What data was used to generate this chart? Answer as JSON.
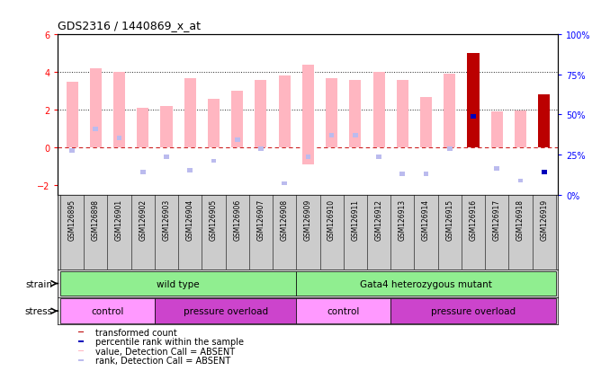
{
  "title": "GDS2316 / 1440869_x_at",
  "samples": [
    "GSM126895",
    "GSM126898",
    "GSM126901",
    "GSM126902",
    "GSM126903",
    "GSM126904",
    "GSM126905",
    "GSM126906",
    "GSM126907",
    "GSM126908",
    "GSM126909",
    "GSM126910",
    "GSM126911",
    "GSM126912",
    "GSM126913",
    "GSM126914",
    "GSM126915",
    "GSM126916",
    "GSM126917",
    "GSM126918",
    "GSM126919"
  ],
  "bar_values": [
    3.5,
    4.2,
    4.0,
    2.1,
    2.2,
    3.7,
    2.6,
    3.0,
    3.6,
    3.8,
    4.4,
    3.7,
    3.6,
    4.0,
    3.6,
    2.7,
    3.9,
    5.0,
    1.9,
    1.95,
    2.8
  ],
  "neg_bar_values": [
    0,
    0,
    0,
    0,
    0,
    0,
    0,
    0,
    0,
    0,
    -0.9,
    0,
    0,
    0,
    0,
    0,
    0,
    0,
    0,
    0,
    0
  ],
  "bar_absent": [
    true,
    true,
    true,
    true,
    true,
    true,
    true,
    true,
    true,
    true,
    true,
    true,
    true,
    true,
    true,
    true,
    true,
    false,
    true,
    true,
    false
  ],
  "rank_values": [
    -0.15,
    1.0,
    0.5,
    -1.3,
    -0.5,
    -1.2,
    -0.7,
    0.4,
    -0.05,
    -1.9,
    -0.5,
    0.65,
    0.65,
    -0.5,
    -1.4,
    -1.4,
    -0.05,
    1.65,
    -1.1,
    -1.75,
    -1.3
  ],
  "rank_absent": [
    true,
    true,
    true,
    true,
    true,
    true,
    true,
    true,
    true,
    true,
    true,
    true,
    true,
    true,
    true,
    true,
    true,
    false,
    true,
    true,
    false
  ],
  "ylim_left": [
    -2.5,
    6.0
  ],
  "yticks_left": [
    -2,
    0,
    2,
    4,
    6
  ],
  "ylim_right": [
    0,
    100
  ],
  "yticks_right": [
    0,
    25,
    50,
    75,
    100
  ],
  "absent_bar_color": "#FFB6C1",
  "present_bar_color": "#BB0000",
  "absent_rank_color": "#BBBBEE",
  "present_rank_color": "#0000BB",
  "ref_line_color": "#CC2222",
  "dot_line_color": "#222222",
  "strain_wt_color": "#90EE90",
  "strain_mut_color": "#90EE90",
  "stress_ctrl_color": "#FF99FF",
  "stress_po_color": "#CC44CC",
  "xtick_bg_color": "#CCCCCC",
  "strain_bg_color": "#DDDDDD",
  "stress_bg_color": "#DDDDDD",
  "legend_items": [
    {
      "color": "#BB0000",
      "text": "transformed count"
    },
    {
      "color": "#0000BB",
      "text": "percentile rank within the sample"
    },
    {
      "color": "#FFB6C1",
      "text": "value, Detection Call = ABSENT"
    },
    {
      "color": "#BBBBEE",
      "text": "rank, Detection Call = ABSENT"
    }
  ],
  "n_wt": 10,
  "stress_splits": [
    4,
    10,
    14,
    21
  ]
}
